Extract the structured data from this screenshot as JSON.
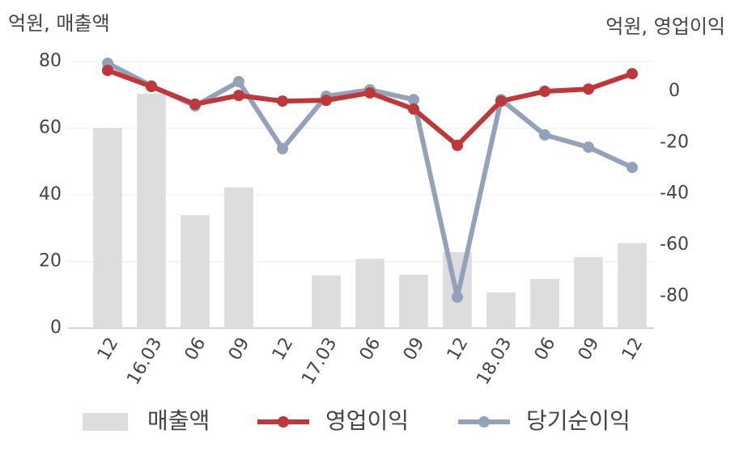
{
  "chart_data": {
    "type": "bar_line",
    "y_unit_label": "억원, 매출액",
    "y2_unit_label": "억원, 영업이익",
    "categories": [
      "12",
      "16.03",
      "06",
      "09",
      "12",
      "17.03",
      "06",
      "09",
      "12",
      "18.03",
      "06",
      "09",
      "12"
    ],
    "series": [
      {
        "name": "매출액",
        "type": "bar",
        "color": "#dddddd",
        "values": [
          60,
          70.3,
          33.9,
          42.2,
          null,
          15.8,
          20.8,
          16,
          22.8,
          10.7,
          14.8,
          21.3,
          25.5
        ]
      },
      {
        "name": "영업이익",
        "type": "line",
        "axis": "y2",
        "color": "#c0373a",
        "values": [
          8.2,
          1.9,
          -5.0,
          -1.6,
          -3.8,
          -3.5,
          -0.6,
          -6.9,
          -21.1,
          -3.8,
          0,
          0.9,
          6.9
        ]
      },
      {
        "name": "당기순이익",
        "type": "line",
        "axis": "y2",
        "color": "#94a1ba",
        "values": [
          11.0,
          2.2,
          -5.7,
          3.8,
          -22.4,
          -1.9,
          0.6,
          -3.2,
          -80.4,
          -3.2,
          -17.0,
          -21.8,
          -29.7
        ]
      }
    ],
    "ylim": [
      0,
      80
    ],
    "yticks": [
      0,
      20,
      40,
      60,
      80
    ],
    "y2lim": [
      -92.5,
      11.7
    ],
    "y2ticks": [
      0,
      -20,
      -40,
      -60,
      -80
    ],
    "grid": true
  }
}
